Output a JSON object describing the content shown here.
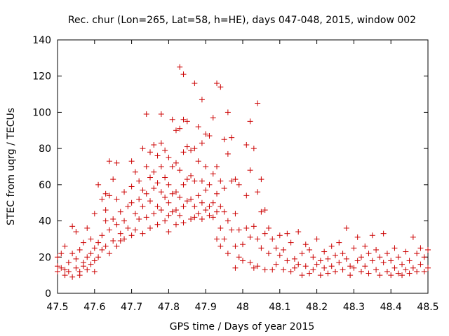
{
  "chart_data": {
    "type": "scatter",
    "title": "Rec. chur (Lon=265, Lat=58, h=HE), days 047-048, 2015, window 002",
    "xlabel": "GPS time / Days of year 2015",
    "ylabel": "STEC from uqrg / TECUs",
    "xlim": [
      47.5,
      48.5
    ],
    "ylim": [
      0,
      140
    ],
    "xticks": [
      "47.5",
      "47.6",
      "47.7",
      "47.8",
      "47.9",
      "48",
      "48.1",
      "48.2",
      "48.3",
      "48.4",
      "48.5"
    ],
    "yticks": [
      "0",
      "20",
      "40",
      "60",
      "80",
      "100",
      "120",
      "140"
    ],
    "grid": false,
    "marker": "+",
    "color": "#cc0000",
    "series": [
      {
        "name": "",
        "points": [
          [
            47.5,
            15
          ],
          [
            47.5,
            12
          ],
          [
            47.5,
            20
          ],
          [
            47.51,
            14
          ],
          [
            47.51,
            22
          ],
          [
            47.52,
            13
          ],
          [
            47.52,
            10
          ],
          [
            47.52,
            26
          ],
          [
            47.53,
            17
          ],
          [
            47.53,
            12
          ],
          [
            47.54,
            37
          ],
          [
            47.54,
            22
          ],
          [
            47.54,
            9
          ],
          [
            47.55,
            14
          ],
          [
            47.55,
            34
          ],
          [
            47.55,
            19
          ],
          [
            47.56,
            24
          ],
          [
            47.56,
            12
          ],
          [
            47.56,
            10
          ],
          [
            47.57,
            17
          ],
          [
            47.57,
            28
          ],
          [
            47.57,
            15
          ],
          [
            47.58,
            36
          ],
          [
            47.58,
            20
          ],
          [
            47.58,
            13
          ],
          [
            47.59,
            22
          ],
          [
            47.59,
            16
          ],
          [
            47.59,
            30
          ],
          [
            47.6,
            44
          ],
          [
            47.6,
            25
          ],
          [
            47.6,
            18
          ],
          [
            47.6,
            12
          ],
          [
            47.61,
            60
          ],
          [
            47.61,
            28
          ],
          [
            47.61,
            20
          ],
          [
            47.62,
            52
          ],
          [
            47.62,
            32
          ],
          [
            47.62,
            24
          ],
          [
            47.63,
            55
          ],
          [
            47.63,
            46
          ],
          [
            47.63,
            40
          ],
          [
            47.63,
            26
          ],
          [
            47.64,
            73
          ],
          [
            47.64,
            54
          ],
          [
            47.64,
            35
          ],
          [
            47.64,
            22
          ],
          [
            47.65,
            63
          ],
          [
            47.65,
            41
          ],
          [
            47.65,
            29
          ],
          [
            47.66,
            72
          ],
          [
            47.66,
            52
          ],
          [
            47.66,
            38
          ],
          [
            47.66,
            26
          ],
          [
            47.67,
            45
          ],
          [
            47.67,
            33
          ],
          [
            47.67,
            29
          ],
          [
            47.68,
            56
          ],
          [
            47.68,
            40
          ],
          [
            47.68,
            30
          ],
          [
            47.69,
            48
          ],
          [
            47.69,
            36
          ],
          [
            47.7,
            73
          ],
          [
            47.7,
            59
          ],
          [
            47.7,
            50
          ],
          [
            47.7,
            32
          ],
          [
            47.71,
            67
          ],
          [
            47.71,
            44
          ],
          [
            47.71,
            35
          ],
          [
            47.72,
            62
          ],
          [
            47.72,
            52
          ],
          [
            47.72,
            41
          ],
          [
            47.73,
            80
          ],
          [
            47.73,
            57
          ],
          [
            47.73,
            48
          ],
          [
            47.73,
            33
          ],
          [
            47.74,
            99
          ],
          [
            47.74,
            70
          ],
          [
            47.74,
            55
          ],
          [
            47.74,
            42
          ],
          [
            47.75,
            78
          ],
          [
            47.75,
            64
          ],
          [
            47.75,
            51
          ],
          [
            47.75,
            36
          ],
          [
            47.76,
            82
          ],
          [
            47.76,
            67
          ],
          [
            47.76,
            58
          ],
          [
            47.76,
            44
          ],
          [
            47.77,
            76
          ],
          [
            47.77,
            61
          ],
          [
            47.77,
            48
          ],
          [
            47.77,
            38
          ],
          [
            47.78,
            99
          ],
          [
            47.78,
            83
          ],
          [
            47.78,
            70
          ],
          [
            47.78,
            56
          ],
          [
            47.78,
            46
          ],
          [
            47.79,
            79
          ],
          [
            47.79,
            64
          ],
          [
            47.79,
            53
          ],
          [
            47.79,
            40
          ],
          [
            47.8,
            75
          ],
          [
            47.8,
            60
          ],
          [
            47.8,
            50
          ],
          [
            47.8,
            43
          ],
          [
            47.8,
            34
          ],
          [
            47.81,
            96
          ],
          [
            47.81,
            70
          ],
          [
            47.81,
            55
          ],
          [
            47.81,
            45
          ],
          [
            47.82,
            90
          ],
          [
            47.82,
            72
          ],
          [
            47.82,
            56
          ],
          [
            47.82,
            46
          ],
          [
            47.82,
            38
          ],
          [
            47.83,
            125
          ],
          [
            47.83,
            91
          ],
          [
            47.83,
            68
          ],
          [
            47.83,
            53
          ],
          [
            47.83,
            43
          ],
          [
            47.84,
            121
          ],
          [
            47.84,
            96
          ],
          [
            47.84,
            78
          ],
          [
            47.84,
            60
          ],
          [
            47.84,
            48
          ],
          [
            47.84,
            39
          ],
          [
            47.85,
            95
          ],
          [
            47.85,
            81
          ],
          [
            47.85,
            63
          ],
          [
            47.85,
            51
          ],
          [
            47.86,
            79
          ],
          [
            47.86,
            65
          ],
          [
            47.86,
            52
          ],
          [
            47.86,
            41
          ],
          [
            47.87,
            116
          ],
          [
            47.87,
            80
          ],
          [
            47.87,
            62
          ],
          [
            47.87,
            48
          ],
          [
            47.87,
            42
          ],
          [
            47.88,
            92
          ],
          [
            47.88,
            73
          ],
          [
            47.88,
            54
          ],
          [
            47.88,
            44
          ],
          [
            47.89,
            107
          ],
          [
            47.89,
            83
          ],
          [
            47.89,
            62
          ],
          [
            47.89,
            50
          ],
          [
            47.89,
            41
          ],
          [
            47.9,
            88
          ],
          [
            47.9,
            70
          ],
          [
            47.9,
            57
          ],
          [
            47.9,
            46
          ],
          [
            47.91,
            87
          ],
          [
            47.91,
            60
          ],
          [
            47.91,
            48
          ],
          [
            47.91,
            43
          ],
          [
            47.92,
            97
          ],
          [
            47.92,
            66
          ],
          [
            47.92,
            50
          ],
          [
            47.92,
            42
          ],
          [
            47.93,
            116
          ],
          [
            47.93,
            70
          ],
          [
            47.93,
            55
          ],
          [
            47.93,
            45
          ],
          [
            47.93,
            30
          ],
          [
            47.94,
            114
          ],
          [
            47.94,
            62
          ],
          [
            47.94,
            48
          ],
          [
            47.94,
            36
          ],
          [
            47.94,
            26
          ],
          [
            47.95,
            85
          ],
          [
            47.95,
            58
          ],
          [
            47.95,
            45
          ],
          [
            47.95,
            30
          ],
          [
            47.96,
            100
          ],
          [
            47.96,
            77
          ],
          [
            47.96,
            40
          ],
          [
            47.96,
            22
          ],
          [
            47.97,
            86
          ],
          [
            47.97,
            62
          ],
          [
            47.97,
            35
          ],
          [
            47.98,
            63
          ],
          [
            47.98,
            44
          ],
          [
            47.98,
            26
          ],
          [
            47.98,
            14
          ],
          [
            47.99,
            60
          ],
          [
            47.99,
            35
          ],
          [
            47.99,
            20
          ],
          [
            48.0,
            27
          ],
          [
            48.0,
            18
          ],
          [
            48.01,
            82
          ],
          [
            48.01,
            54
          ],
          [
            48.01,
            36
          ],
          [
            48.02,
            95
          ],
          [
            48.02,
            68
          ],
          [
            48.02,
            31
          ],
          [
            48.02,
            17
          ],
          [
            48.03,
            80
          ],
          [
            48.03,
            37
          ],
          [
            48.03,
            14
          ],
          [
            48.04,
            105
          ],
          [
            48.04,
            56
          ],
          [
            48.04,
            30
          ],
          [
            48.04,
            15
          ],
          [
            48.05,
            63
          ],
          [
            48.05,
            45
          ],
          [
            48.05,
            25
          ],
          [
            48.06,
            46
          ],
          [
            48.06,
            33
          ],
          [
            48.06,
            13
          ],
          [
            48.07,
            36
          ],
          [
            48.07,
            22
          ],
          [
            48.08,
            30
          ],
          [
            48.08,
            13
          ],
          [
            48.09,
            25
          ],
          [
            48.09,
            16
          ],
          [
            48.1,
            32
          ],
          [
            48.1,
            21
          ],
          [
            48.11,
            24
          ],
          [
            48.11,
            13
          ],
          [
            48.12,
            33
          ],
          [
            48.12,
            18
          ],
          [
            48.13,
            28
          ],
          [
            48.13,
            12
          ],
          [
            48.14,
            19
          ],
          [
            48.14,
            14
          ],
          [
            48.15,
            34
          ],
          [
            48.15,
            16
          ],
          [
            48.16,
            22
          ],
          [
            48.16,
            10
          ],
          [
            48.17,
            27
          ],
          [
            48.17,
            15
          ],
          [
            48.18,
            24
          ],
          [
            48.18,
            11
          ],
          [
            48.19,
            20
          ],
          [
            48.19,
            13
          ],
          [
            48.2,
            30
          ],
          [
            48.2,
            16
          ],
          [
            48.21,
            18
          ],
          [
            48.21,
            10
          ],
          [
            48.22,
            23
          ],
          [
            48.22,
            14
          ],
          [
            48.23,
            19
          ],
          [
            48.23,
            11
          ],
          [
            48.24,
            26
          ],
          [
            48.24,
            15
          ],
          [
            48.25,
            21
          ],
          [
            48.25,
            12
          ],
          [
            48.26,
            28
          ],
          [
            48.26,
            17
          ],
          [
            48.27,
            22
          ],
          [
            48.27,
            13
          ],
          [
            48.28,
            36
          ],
          [
            48.28,
            19
          ],
          [
            48.29,
            15
          ],
          [
            48.29,
            10
          ],
          [
            48.3,
            25
          ],
          [
            48.3,
            14
          ],
          [
            48.31,
            31
          ],
          [
            48.31,
            18
          ],
          [
            48.32,
            20
          ],
          [
            48.32,
            12
          ],
          [
            48.33,
            26
          ],
          [
            48.33,
            15
          ],
          [
            48.34,
            22
          ],
          [
            48.34,
            11
          ],
          [
            48.35,
            32
          ],
          [
            48.35,
            18
          ],
          [
            48.36,
            24
          ],
          [
            48.36,
            13
          ],
          [
            48.37,
            20
          ],
          [
            48.37,
            10
          ],
          [
            48.38,
            33
          ],
          [
            48.38,
            17
          ],
          [
            48.39,
            22
          ],
          [
            48.39,
            12
          ],
          [
            48.4,
            18
          ],
          [
            48.4,
            10
          ],
          [
            48.41,
            25
          ],
          [
            48.41,
            14
          ],
          [
            48.42,
            20
          ],
          [
            48.42,
            11
          ],
          [
            48.43,
            16
          ],
          [
            48.43,
            10
          ],
          [
            48.44,
            23
          ],
          [
            48.44,
            13
          ],
          [
            48.45,
            18
          ],
          [
            48.45,
            11
          ],
          [
            48.46,
            31
          ],
          [
            48.46,
            14
          ],
          [
            48.47,
            22
          ],
          [
            48.47,
            12
          ],
          [
            48.48,
            25
          ],
          [
            48.48,
            16
          ],
          [
            48.49,
            20
          ],
          [
            48.49,
            12
          ],
          [
            48.5,
            24
          ],
          [
            48.5,
            14
          ]
        ]
      }
    ]
  }
}
